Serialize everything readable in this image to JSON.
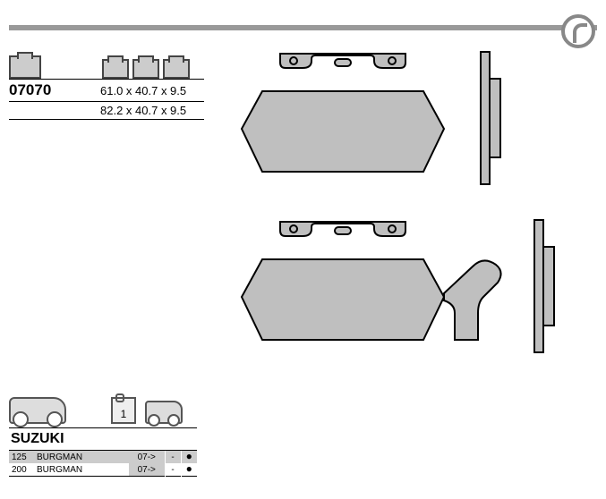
{
  "part_number": "07070",
  "dimensions": {
    "line1": "61.0 x 40.7 x 9.5",
    "line2": "82.2 x 40.7 x 9.5"
  },
  "colors": {
    "pad_fill": "#bfbfbf",
    "pad_stroke": "#000000",
    "bar": "#999999",
    "shade": "#cccccc"
  },
  "calendar_label": "1",
  "brand": "SUZUKI",
  "fitment": [
    {
      "cc": "125",
      "model": "BURGMAN",
      "years": "07->",
      "col1": "-",
      "col2": "●",
      "shaded": true
    },
    {
      "cc": "200",
      "model": "BURGMAN",
      "years": "07->",
      "col1": "-",
      "col2": "●",
      "shaded": false
    }
  ]
}
